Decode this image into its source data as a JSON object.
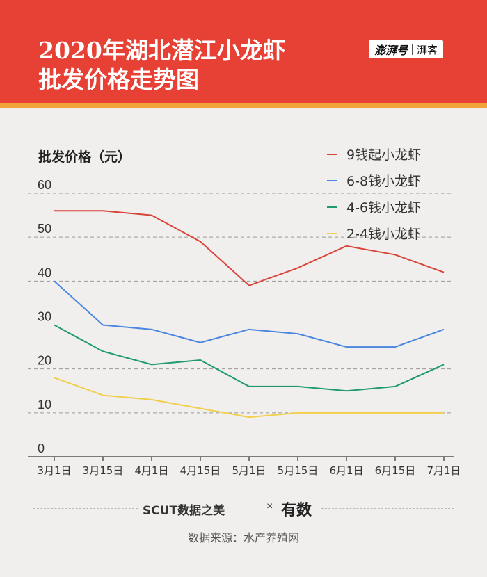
{
  "header": {
    "title_line1": "2020年湖北潜江小龙虾",
    "title_line2": "批发价格走势图",
    "brand_main": "澎湃号",
    "brand_sub": "湃客"
  },
  "colors": {
    "header_bg": "#e74034",
    "header_stripe": "#f2a33a",
    "background": "#f0efed"
  },
  "chart_data": {
    "type": "line",
    "ylabel": "批发价格（元）",
    "xlabel": "",
    "ylim": [
      0,
      60
    ],
    "yticks": [
      "0",
      "10",
      "20",
      "30",
      "40",
      "50",
      "60"
    ],
    "categories": [
      "3月1日",
      "3月15日",
      "4月1日",
      "4月15日",
      "5月1日",
      "5月15日",
      "6月1日",
      "6月15日",
      "7月1日"
    ],
    "grid": true,
    "legend_position": "top-right",
    "series": [
      {
        "name": "9钱起小龙虾",
        "color": "#d9443a",
        "values": [
          56,
          56,
          55,
          49,
          39,
          43,
          48,
          46,
          42
        ]
      },
      {
        "name": "6-8钱小龙虾",
        "color": "#4a86e0",
        "values": [
          40,
          30,
          29,
          26,
          29,
          28,
          25,
          25,
          29
        ]
      },
      {
        "name": "4-6钱小龙虾",
        "color": "#1f9b6b",
        "values": [
          30,
          24,
          21,
          22,
          16,
          16,
          15,
          16,
          21
        ]
      },
      {
        "name": "2-4钱小龙虾",
        "color": "#f2cf4a",
        "values": [
          18,
          14,
          13,
          11,
          9,
          10,
          10,
          10,
          10
        ]
      }
    ]
  },
  "footer": {
    "source_label": "SCUT数据之美",
    "cross": "×",
    "logo_text": "有数",
    "data_source": "数据来源：水产养殖网"
  }
}
